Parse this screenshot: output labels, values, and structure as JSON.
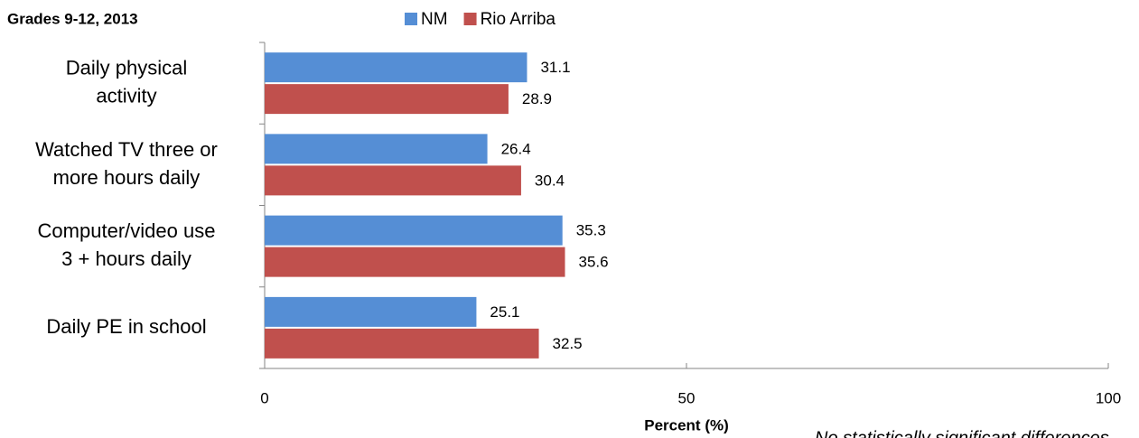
{
  "chart_data": {
    "type": "barh",
    "subtitle": "Grades 9-12, 2013",
    "categories": [
      "Daily physical activity",
      "Watched TV three or more hours daily",
      "Computer/video use 3 + hours daily",
      "Daily PE in school"
    ],
    "series": [
      {
        "name": "NM",
        "color": "#558ed5",
        "values": [
          31.1,
          26.4,
          35.3,
          25.1
        ]
      },
      {
        "name": "Rio Arriba",
        "color": "#c0504d",
        "values": [
          28.9,
          30.4,
          35.6,
          32.5
        ]
      }
    ],
    "xlim": [
      0,
      100
    ],
    "xticks": [
      0,
      50,
      100
    ],
    "xlabel": "Percent (%)",
    "legend": "top",
    "note": "No statistically significant differences"
  }
}
